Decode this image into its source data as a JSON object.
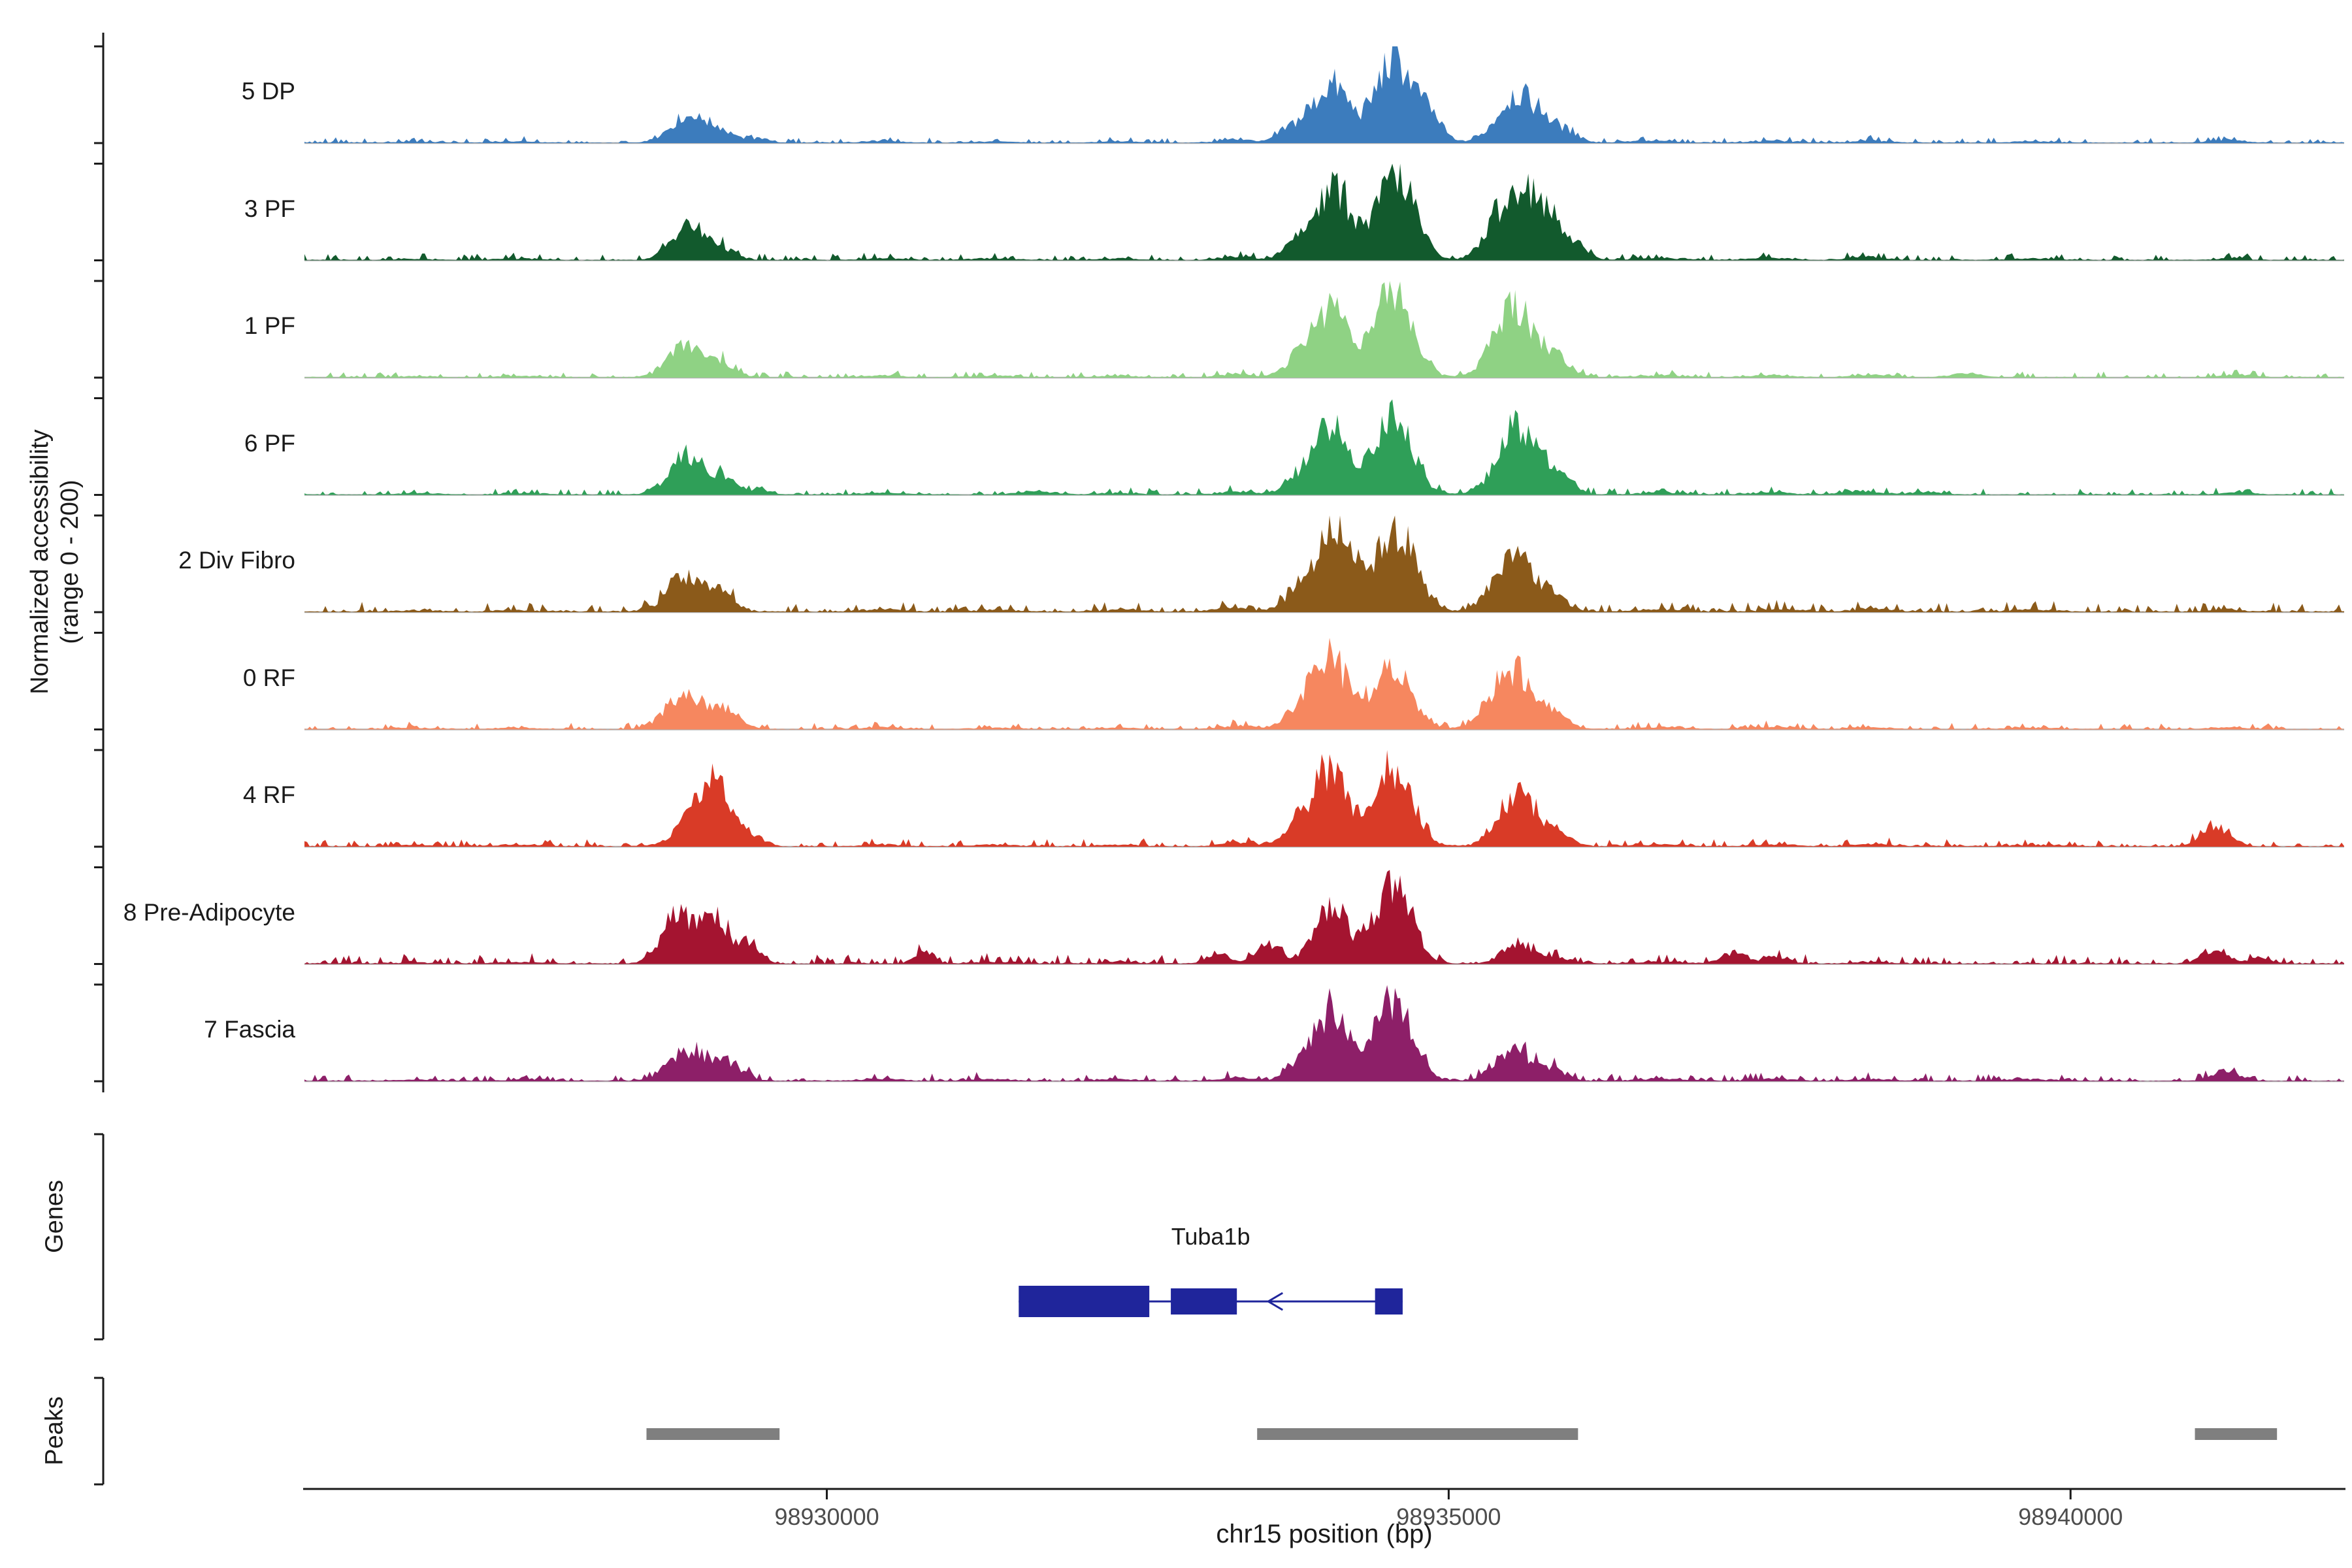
{
  "chart_data": {
    "type": "area",
    "title": "",
    "region": {
      "chromosome": "chr15",
      "start": 98925800,
      "end": 98942200
    },
    "y_axis": {
      "line1": "Normalized accessibility",
      "line2": "(range 0 - 200)",
      "range": [
        0,
        200
      ]
    },
    "x_axis": {
      "label": "chr15 position (bp)",
      "ticks": [
        {
          "bp": 98930000,
          "label": "98930000"
        },
        {
          "bp": 98935000,
          "label": "98935000"
        },
        {
          "bp": 98940000,
          "label": "98940000"
        }
      ]
    },
    "tracks": [
      {
        "label": "5 DP",
        "slug": "5-dp",
        "color": "#3c7cbd",
        "noise": 0.5,
        "peaks": [
          [
            98926700,
            160,
            2
          ],
          [
            98927500,
            150,
            3
          ],
          [
            98928870,
            140,
            52
          ],
          [
            98929130,
            110,
            26
          ],
          [
            98929450,
            90,
            9
          ],
          [
            98930450,
            150,
            4
          ],
          [
            98931350,
            170,
            3
          ],
          [
            98932350,
            150,
            3
          ],
          [
            98933300,
            130,
            7
          ],
          [
            98933750,
            110,
            30
          ],
          [
            98934060,
            140,
            120
          ],
          [
            98934560,
            150,
            170
          ],
          [
            98934850,
            100,
            45
          ],
          [
            98935560,
            160,
            100
          ],
          [
            98935900,
            120,
            26
          ],
          [
            98936600,
            180,
            4
          ],
          [
            98937600,
            170,
            4
          ],
          [
            98938400,
            150,
            4
          ],
          [
            98939700,
            190,
            3
          ],
          [
            98941250,
            130,
            6
          ]
        ]
      },
      {
        "label": "3 PF",
        "slug": "3-pf",
        "color": "#125a2d",
        "noise": 0.6,
        "peaks": [
          [
            98926700,
            160,
            2
          ],
          [
            98927500,
            150,
            3
          ],
          [
            98928880,
            130,
            70
          ],
          [
            98929160,
            100,
            24
          ],
          [
            98930450,
            150,
            4
          ],
          [
            98931350,
            170,
            3
          ],
          [
            98932350,
            150,
            3
          ],
          [
            98933300,
            130,
            7
          ],
          [
            98933800,
            110,
            35
          ],
          [
            98934080,
            140,
            145
          ],
          [
            98934580,
            150,
            175
          ],
          [
            98935450,
            140,
            100
          ],
          [
            98935700,
            140,
            120
          ],
          [
            98936000,
            100,
            35
          ],
          [
            98936700,
            180,
            4
          ],
          [
            98937600,
            170,
            4
          ],
          [
            98938350,
            130,
            7
          ],
          [
            98939700,
            190,
            3
          ],
          [
            98941300,
            130,
            3
          ]
        ]
      },
      {
        "label": "1 PF",
        "slug": "1-pf",
        "color": "#8fd284",
        "noise": 0.55,
        "peaks": [
          [
            98926700,
            160,
            2.5
          ],
          [
            98927500,
            150,
            3
          ],
          [
            98928860,
            140,
            64
          ],
          [
            98929160,
            100,
            27
          ],
          [
            98930450,
            150,
            4
          ],
          [
            98931350,
            170,
            3.5
          ],
          [
            98932350,
            150,
            3
          ],
          [
            98933300,
            130,
            7
          ],
          [
            98933780,
            110,
            32
          ],
          [
            98934060,
            140,
            150
          ],
          [
            98934560,
            150,
            180
          ],
          [
            98935530,
            160,
            150
          ],
          [
            98935880,
            110,
            35
          ],
          [
            98936700,
            180,
            4
          ],
          [
            98937600,
            170,
            4
          ],
          [
            98938400,
            150,
            5
          ],
          [
            98939150,
            130,
            7
          ],
          [
            98941350,
            130,
            5
          ]
        ]
      },
      {
        "label": "6 PF",
        "slug": "6-pf",
        "color": "#2f9f58",
        "noise": 0.6,
        "peaks": [
          [
            98926700,
            160,
            2.5
          ],
          [
            98927600,
            150,
            3
          ],
          [
            98928870,
            140,
            80
          ],
          [
            98929160,
            100,
            32
          ],
          [
            98929450,
            90,
            11
          ],
          [
            98930450,
            150,
            4
          ],
          [
            98931700,
            150,
            6
          ],
          [
            98932350,
            150,
            3
          ],
          [
            98933300,
            130,
            7
          ],
          [
            98933780,
            110,
            30
          ],
          [
            98934060,
            140,
            138
          ],
          [
            98934560,
            150,
            160
          ],
          [
            98935560,
            160,
            140
          ],
          [
            98935900,
            110,
            30
          ],
          [
            98936700,
            180,
            4
          ],
          [
            98937600,
            170,
            4
          ],
          [
            98938300,
            130,
            8
          ],
          [
            98938850,
            120,
            6
          ],
          [
            98941350,
            130,
            4
          ]
        ]
      },
      {
        "label": "2 Div Fibro",
        "slug": "2-div-fibro",
        "color": "#8b5a1a",
        "noise": 0.9,
        "peaks": [
          [
            98926700,
            160,
            3
          ],
          [
            98927500,
            150,
            3.5
          ],
          [
            98928870,
            140,
            74
          ],
          [
            98929160,
            100,
            32
          ],
          [
            98930450,
            150,
            5
          ],
          [
            98931350,
            170,
            4
          ],
          [
            98932400,
            150,
            4
          ],
          [
            98933250,
            130,
            9
          ],
          [
            98933800,
            120,
            40
          ],
          [
            98934090,
            150,
            165
          ],
          [
            98934580,
            150,
            175
          ],
          [
            98935520,
            150,
            118
          ],
          [
            98935850,
            100,
            30
          ],
          [
            98936700,
            180,
            5
          ],
          [
            98937700,
            170,
            5
          ],
          [
            98938400,
            150,
            6
          ],
          [
            98939700,
            190,
            4
          ],
          [
            98941250,
            130,
            5
          ]
        ]
      },
      {
        "label": "0 RF",
        "slug": "0-rf",
        "color": "#f6875f",
        "noise": 0.6,
        "peaks": [
          [
            98926700,
            160,
            2.5
          ],
          [
            98927500,
            150,
            3
          ],
          [
            98928860,
            150,
            74
          ],
          [
            98929190,
            110,
            40
          ],
          [
            98930450,
            150,
            4
          ],
          [
            98931350,
            170,
            3
          ],
          [
            98932350,
            150,
            3
          ],
          [
            98933300,
            130,
            7
          ],
          [
            98933780,
            110,
            30
          ],
          [
            98934040,
            140,
            152
          ],
          [
            98934540,
            150,
            130
          ],
          [
            98935500,
            160,
            124
          ],
          [
            98935850,
            110,
            30
          ],
          [
            98936700,
            180,
            4
          ],
          [
            98937600,
            170,
            4
          ],
          [
            98938400,
            150,
            4
          ],
          [
            98939700,
            190,
            3
          ],
          [
            98941250,
            130,
            4
          ]
        ]
      },
      {
        "label": "4 RF",
        "slug": "4-rf",
        "color": "#d93b27",
        "noise": 0.7,
        "peaks": [
          [
            98926700,
            160,
            2.5
          ],
          [
            98927500,
            150,
            3.5
          ],
          [
            98928950,
            150,
            60
          ],
          [
            98929120,
            120,
            100
          ],
          [
            98929400,
            90,
            22
          ],
          [
            98930450,
            150,
            4
          ],
          [
            98931350,
            170,
            3.5
          ],
          [
            98932350,
            150,
            3.5
          ],
          [
            98933300,
            130,
            8
          ],
          [
            98933780,
            110,
            32
          ],
          [
            98934040,
            140,
            155
          ],
          [
            98934550,
            150,
            165
          ],
          [
            98935560,
            150,
            102
          ],
          [
            98935880,
            100,
            25
          ],
          [
            98936700,
            180,
            4
          ],
          [
            98937600,
            170,
            4
          ],
          [
            98938400,
            150,
            5
          ],
          [
            98939700,
            190,
            3
          ],
          [
            98941170,
            110,
            44
          ]
        ]
      },
      {
        "label": "8 Pre-Adipocyte",
        "slug": "8-pre-adipocyte",
        "color": "#a41430",
        "noise": 0.9,
        "peaks": [
          [
            98926700,
            160,
            2.5
          ],
          [
            98927500,
            150,
            3
          ],
          [
            98928790,
            120,
            95
          ],
          [
            98929080,
            110,
            100
          ],
          [
            98929360,
            90,
            45
          ],
          [
            98930780,
            70,
            27
          ],
          [
            98931350,
            170,
            3
          ],
          [
            98932350,
            150,
            3
          ],
          [
            98933150,
            80,
            17
          ],
          [
            98933530,
            90,
            36
          ],
          [
            98934060,
            140,
            115
          ],
          [
            98934560,
            140,
            170
          ],
          [
            98935560,
            120,
            44
          ],
          [
            98935900,
            90,
            12
          ],
          [
            98936700,
            180,
            3
          ],
          [
            98937290,
            100,
            22
          ],
          [
            98937660,
            90,
            12
          ],
          [
            98938400,
            150,
            3
          ],
          [
            98941160,
            100,
            32
          ],
          [
            98941520,
            80,
            12
          ]
        ]
      },
      {
        "label": "7 Fascia",
        "slug": "7-fascia",
        "color": "#8d1f68",
        "noise": 0.7,
        "peaks": [
          [
            98926700,
            160,
            2.5
          ],
          [
            98927600,
            150,
            3
          ],
          [
            98928890,
            150,
            64
          ],
          [
            98929220,
            110,
            34
          ],
          [
            98930450,
            150,
            4
          ],
          [
            98931350,
            170,
            3.5
          ],
          [
            98932350,
            150,
            3.5
          ],
          [
            98933300,
            130,
            7
          ],
          [
            98933800,
            110,
            30
          ],
          [
            98934060,
            140,
            145
          ],
          [
            98934560,
            150,
            168
          ],
          [
            98935520,
            140,
            70
          ],
          [
            98935850,
            100,
            22
          ],
          [
            98936700,
            180,
            4
          ],
          [
            98937600,
            170,
            4
          ],
          [
            98938400,
            150,
            4
          ],
          [
            98939700,
            190,
            3
          ],
          [
            98941250,
            110,
            20
          ]
        ]
      }
    ],
    "gene_track": {
      "section_label": "Genes",
      "gene_color": "#1f259b",
      "genes": [
        {
          "name": "Tuba1b",
          "strand": "-",
          "span": [
            98931543,
            98934630
          ],
          "exons": [
            [
              98931543,
              98932593,
              48
            ],
            [
              98932766,
              98933297,
              40
            ],
            [
              98934408,
              98934630,
              40
            ]
          ],
          "arrow_bp": 98933560
        }
      ]
    },
    "peaks_track": {
      "section_label": "Peaks",
      "color": "#7f7f7f",
      "intervals": [
        [
          98928550,
          98929620
        ],
        [
          98933460,
          98936040
        ],
        [
          98941000,
          98941660
        ]
      ]
    }
  }
}
